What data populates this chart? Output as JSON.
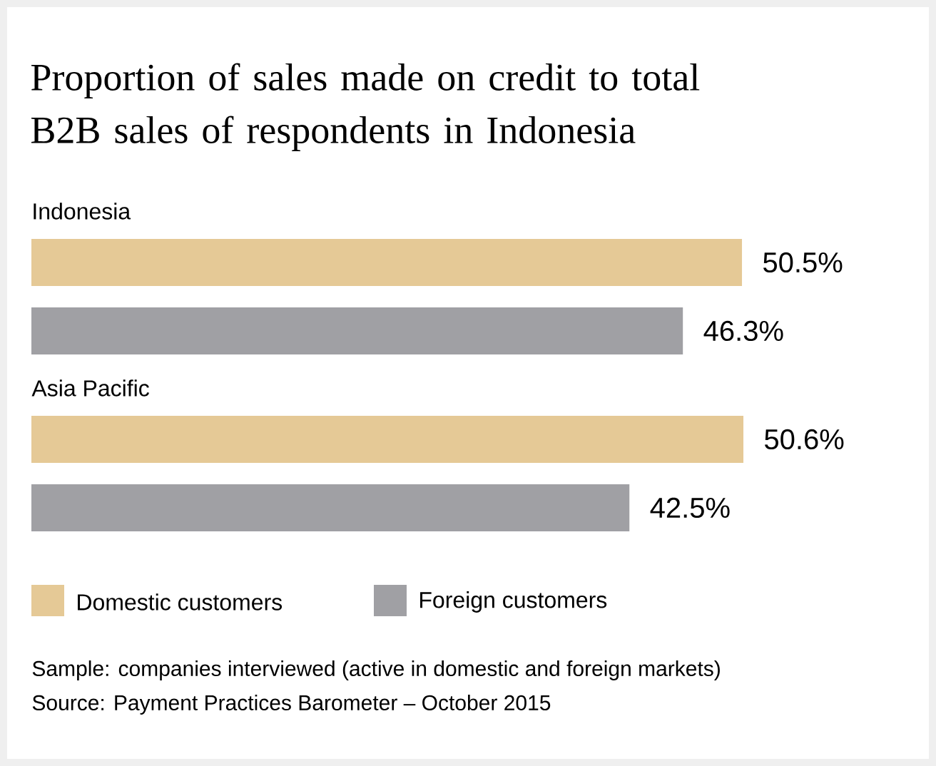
{
  "chart_data": {
    "type": "bar",
    "orientation": "horizontal",
    "title": "Proportion of sales made on credit to total B2B sales of respondents in Indonesia",
    "categories": [
      "Indonesia",
      "Asia Pacific"
    ],
    "series": [
      {
        "name": "Domestic customers",
        "color": "#e5c996",
        "values": [
          50.5,
          50.6
        ],
        "value_labels": [
          "50.5%",
          "50.6%"
        ]
      },
      {
        "name": "Foreign customers",
        "color": "#a0a0a4",
        "values": [
          46.3,
          42.5
        ],
        "value_labels": [
          "46.3%",
          "42.5%"
        ]
      }
    ],
    "legend": "bottom",
    "annotations": [
      "Sample: companies interviewed (active in domestic and foreign markets)",
      "Source: Payment Practices Barometer – October 2015"
    ]
  }
}
